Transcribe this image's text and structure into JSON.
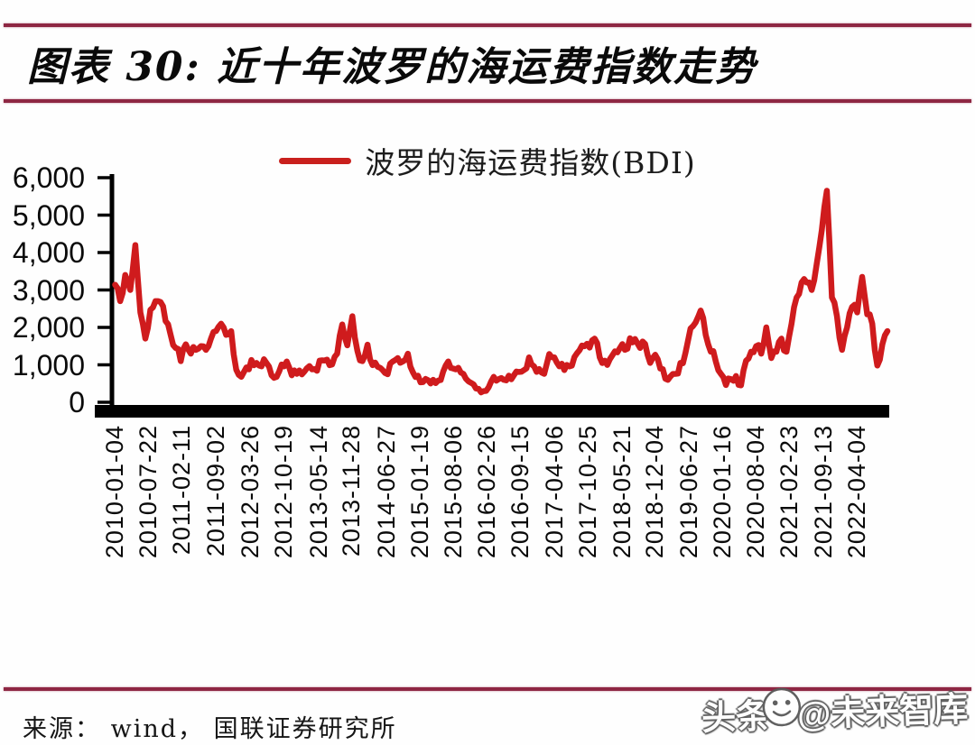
{
  "page": {
    "title": "图表 30:  近十年波罗的海运费指数走势",
    "source_note": "来源：  wind，  国联证券研究所",
    "watermark": {
      "prefix": "头条",
      "handle": "@未来智库"
    }
  },
  "colors": {
    "accent_rule": "#8e2743",
    "series_line": "#cf1b1d",
    "axis": "#000000"
  },
  "chart_data": {
    "type": "line",
    "title": "近十年波罗的海运费指数走势",
    "legend_position": "top-center",
    "grid": false,
    "ylim": [
      0,
      6000
    ],
    "y_ticks": [
      0,
      1000,
      2000,
      3000,
      4000,
      5000,
      6000
    ],
    "y_tick_labels": [
      "0",
      "1,000",
      "2,000",
      "3,000",
      "4,000",
      "5,000",
      "6,000"
    ],
    "x_range": [
      "2010-01-04",
      "2022-10-31"
    ],
    "x_tick_labels": [
      "2010-01-04",
      "2010-07-22",
      "2011-02-11",
      "2011-09-02",
      "2012-03-26",
      "2012-10-19",
      "2013-05-14",
      "2013-11-28",
      "2014-06-27",
      "2015-01-19",
      "2015-08-06",
      "2016-02-26",
      "2016-09-15",
      "2017-04-06",
      "2017-10-25",
      "2018-05-21",
      "2018-12-04",
      "2019-06-27",
      "2020-01-16",
      "2020-08-04",
      "2021-02-23",
      "2021-09-13",
      "2022-04-04"
    ],
    "series": [
      {
        "name": "波罗的海运费指数(BDI)",
        "color": "#cf1b1d",
        "sampling": "monthly",
        "start_month": "2010-01",
        "values": [
          3140,
          2700,
          3400,
          3000,
          4200,
          2400,
          1700,
          2470,
          2700,
          2680,
          2170,
          1800,
          1450,
          1100,
          1550,
          1300,
          1400,
          1500,
          1400,
          1700,
          1900,
          2100,
          1800,
          1900,
          870,
          680,
          930,
          1130,
          1050,
          960,
          1050,
          720,
          680,
          1010,
          1090,
          720,
          760,
          745,
          910,
          880,
          840,
          1120,
          1140,
          1010,
          1300,
          2080,
          1520,
          2300,
          1370,
          1100,
          1540,
          990,
          950,
          860,
          750,
          1090,
          1180,
          1090,
          1300,
          800,
          710,
          540,
          590,
          600,
          580,
          820,
          1090,
          900,
          920,
          760,
          560,
          480,
          360,
          300,
          400,
          680,
          620,
          600,
          710,
          720,
          810,
          860,
          1200,
          960,
          890,
          760,
          1290,
          1200,
          960,
          860,
          960,
          1210,
          1390,
          1500,
          1460,
          1700,
          1200,
          1110,
          1150,
          1360,
          1450,
          1400,
          1710,
          1690,
          1450,
          1560,
          1050,
          1270,
          900,
          630,
          690,
          760,
          1050,
          1320,
          1970,
          2130,
          2450,
          1800,
          1350,
          1090,
          760,
          460,
          620,
          700,
          450,
          1110,
          1350,
          1500,
          1300,
          2000,
          1180,
          1350,
          1700,
          1350,
          2100,
          2800,
          3200,
          3200,
          3000,
          3700,
          4600,
          5650,
          2800,
          2300,
          1400,
          2000,
          2550,
          2400,
          3350,
          2350,
          2100,
          980,
          1550,
          1900
        ]
      }
    ]
  }
}
